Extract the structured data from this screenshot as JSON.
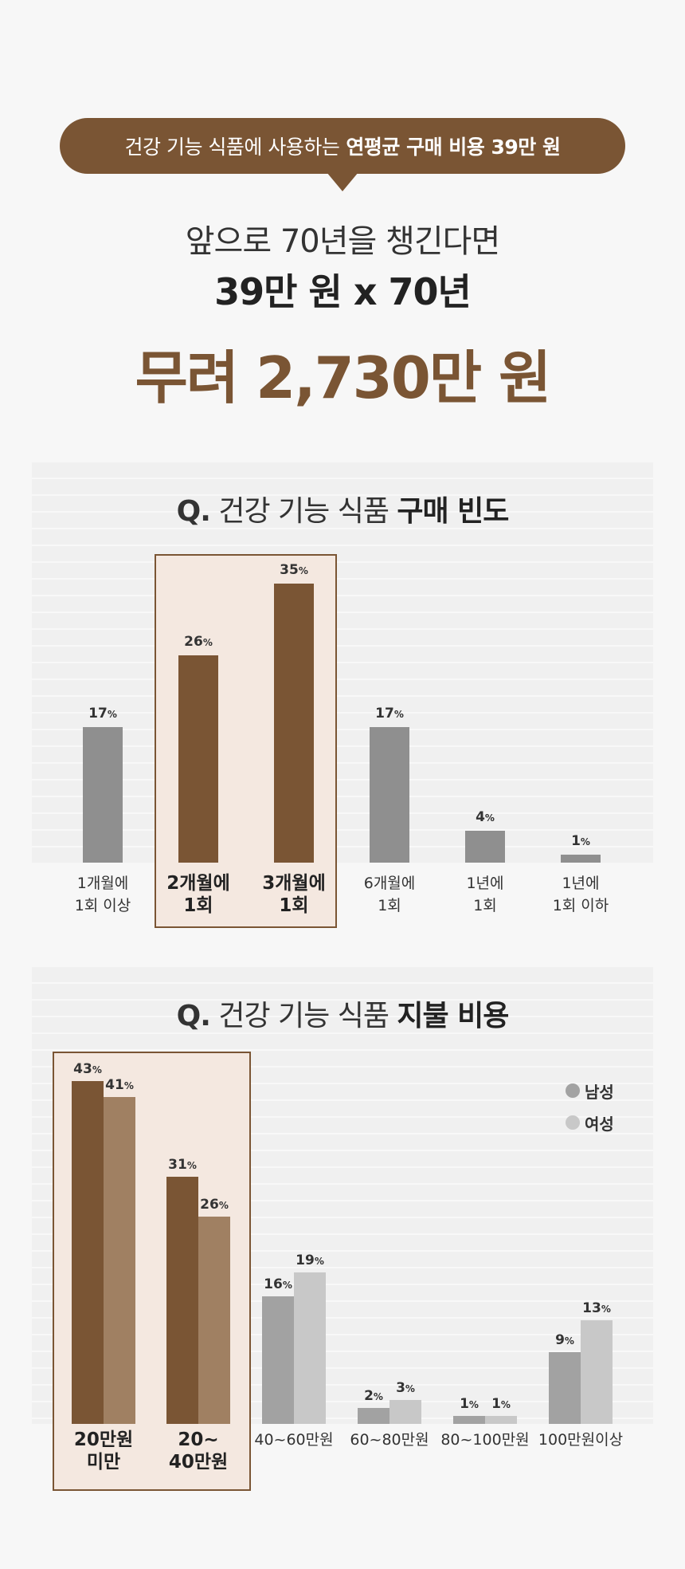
{
  "header": {
    "bubble_prefix": "건강 기능 식품에 사용하는",
    "bubble_bold": "연평균 구매 비용 39만 원",
    "line1": "앞으로 70년을 챙긴다면",
    "line2": "39만 원 x 70년",
    "line3": "무려 2,730만 원"
  },
  "colors": {
    "brown": "#7a5534",
    "brown_light": "#a08062",
    "gray": "#8f8f8f",
    "gray_male": "#a2a2a2",
    "gray_female": "#c8c8c8",
    "highlight_bg": "#f4e8e0"
  },
  "chart1": {
    "title_q": "Q.",
    "title_text": "건강 기능 식품",
    "title_bold": "구매 빈도",
    "labels": [
      [
        "1개월에",
        "1회 이상"
      ],
      [
        "2개월에",
        "1회"
      ],
      [
        "3개월에",
        "1회"
      ],
      [
        "6개월에",
        "1회"
      ],
      [
        "1년에",
        "1회"
      ],
      [
        "1년에",
        "1회 이하"
      ]
    ]
  },
  "chart2": {
    "title_q": "Q.",
    "title_text": "건강 기능 식품",
    "title_bold": "지불 비용",
    "legend": [
      "남성",
      "여성"
    ],
    "labels": [
      [
        "20만원",
        "미만"
      ],
      [
        "20~",
        "40만원"
      ],
      [
        "40~60만원"
      ],
      [
        "60~80만원"
      ],
      [
        "80~100만원"
      ],
      [
        "100만원이상"
      ]
    ]
  },
  "chart_data": [
    {
      "type": "bar",
      "title": "Q. 건강 기능 식품 구매 빈도",
      "categories": [
        "1개월에 1회 이상",
        "2개월에 1회",
        "3개월에 1회",
        "6개월에 1회",
        "1년에 1회",
        "1년에 1회 이하"
      ],
      "values": [
        17,
        26,
        35,
        17,
        4,
        1
      ],
      "unit": "%",
      "highlighted": [
        1,
        2
      ],
      "grid": false
    },
    {
      "type": "bar",
      "title": "Q. 건강 기능 식품 지불 비용",
      "categories": [
        "20만원 미만",
        "20~40만원",
        "40~60만원",
        "60~80만원",
        "80~100만원",
        "100만원이상"
      ],
      "series": [
        {
          "name": "남성",
          "values": [
            43,
            31,
            16,
            2,
            1,
            9
          ]
        },
        {
          "name": "여성",
          "values": [
            41,
            26,
            19,
            3,
            1,
            13
          ]
        }
      ],
      "unit": "%",
      "highlighted": [
        0,
        1
      ],
      "legend_position": "top-right",
      "grid": false
    }
  ]
}
